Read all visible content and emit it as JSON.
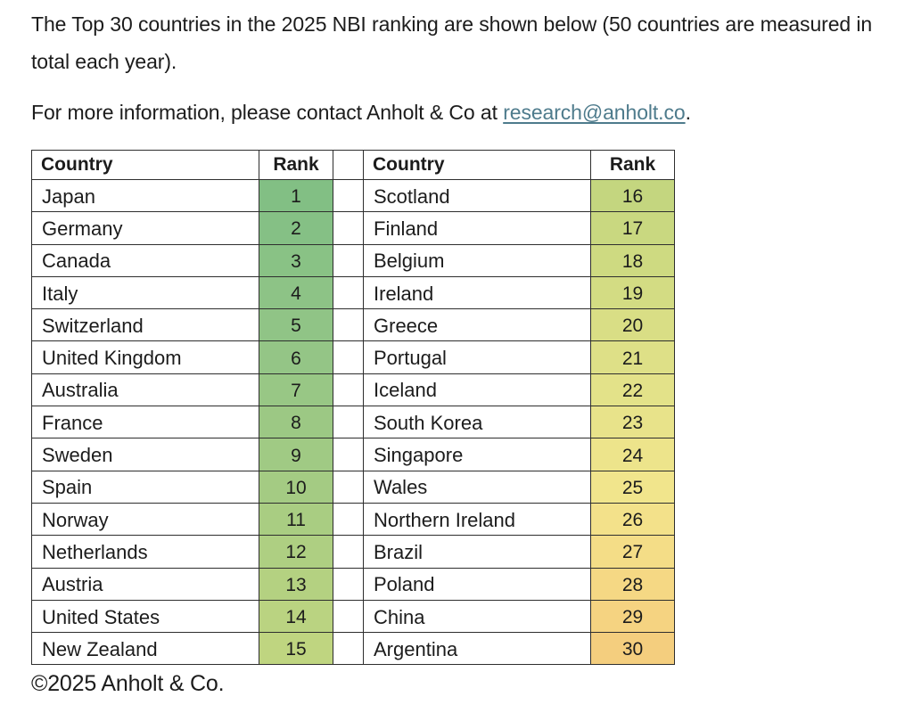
{
  "intro": {
    "text": "The Top 30 countries in the 2025 NBI ranking are shown below (50 countries are measured in total each year)."
  },
  "contact": {
    "prefix": "For more information, please contact Anholt & Co at ",
    "link": "research@anholt.co",
    "suffix": "."
  },
  "table": {
    "headers": [
      "Country",
      "Rank",
      "Country",
      "Rank"
    ],
    "left_rows": [
      {
        "country": "Japan",
        "rank": "1",
        "color": "#82BF84"
      },
      {
        "country": "Germany",
        "rank": "2",
        "color": "#85C085"
      },
      {
        "country": "Canada",
        "rank": "3",
        "color": "#89C285"
      },
      {
        "country": "Italy",
        "rank": "4",
        "color": "#8DC386"
      },
      {
        "country": "Switzerland",
        "rank": "5",
        "color": "#90C486"
      },
      {
        "country": "United Kingdom",
        "rank": "6",
        "color": "#94C586"
      },
      {
        "country": "Australia",
        "rank": "7",
        "color": "#98C785"
      },
      {
        "country": "France",
        "rank": "8",
        "color": "#9CC884"
      },
      {
        "country": "Sweden",
        "rank": "9",
        "color": "#A0CA84"
      },
      {
        "country": "Spain",
        "rank": "10",
        "color": "#A4CB83"
      },
      {
        "country": "Norway",
        "rank": "11",
        "color": "#A9CD82"
      },
      {
        "country": "Netherlands",
        "rank": "12",
        "color": "#AECF82"
      },
      {
        "country": "Austria",
        "rank": "13",
        "color": "#B4D181"
      },
      {
        "country": "United States",
        "rank": "14",
        "color": "#BAD381"
      },
      {
        "country": "New Zealand",
        "rank": "15",
        "color": "#BFD580"
      }
    ],
    "right_rows": [
      {
        "country": "Scotland",
        "rank": "16",
        "color": "#C4D67F"
      },
      {
        "country": "Finland",
        "rank": "17",
        "color": "#C9D880"
      },
      {
        "country": "Belgium",
        "rank": "18",
        "color": "#CEDA81"
      },
      {
        "country": "Ireland",
        "rank": "19",
        "color": "#D3DC83"
      },
      {
        "country": "Greece",
        "rank": "20",
        "color": "#D9DE85"
      },
      {
        "country": "Portugal",
        "rank": "21",
        "color": "#DEE087"
      },
      {
        "country": "Iceland",
        "rank": "22",
        "color": "#E3E289"
      },
      {
        "country": "South Korea",
        "rank": "23",
        "color": "#E8E38A"
      },
      {
        "country": "Singapore",
        "rank": "24",
        "color": "#EDE48B"
      },
      {
        "country": "Wales",
        "rank": "25",
        "color": "#F1E58C"
      },
      {
        "country": "Northern Ireland",
        "rank": "26",
        "color": "#F3E18A"
      },
      {
        "country": "Brazil",
        "rank": "27",
        "color": "#F4DD87"
      },
      {
        "country": "Poland",
        "rank": "28",
        "color": "#F5D884"
      },
      {
        "country": "China",
        "rank": "29",
        "color": "#F5D381"
      },
      {
        "country": "Argentina",
        "rank": "30",
        "color": "#F4CE7E"
      }
    ]
  },
  "footer": {
    "text": "©2025 Anholt & Co."
  },
  "colors": {
    "link": "#4E7B8C",
    "border": "#2E2E2E",
    "scale_start": "#82BF84",
    "scale_mid": "#F1E58C",
    "scale_end": "#F4CE7E"
  }
}
